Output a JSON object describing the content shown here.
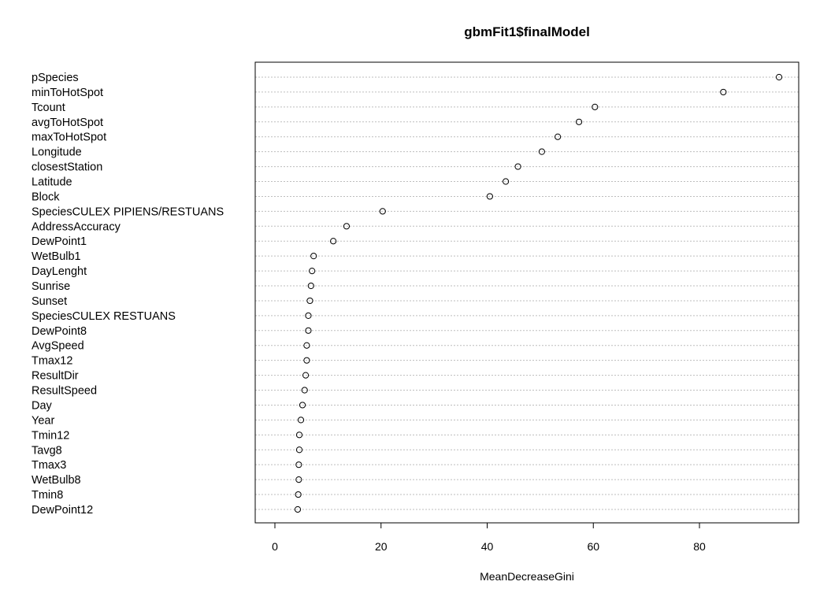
{
  "chart_data": {
    "type": "scatter",
    "title": "gbmFit1$finalModel",
    "xlabel": "MeanDecreaseGini",
    "ylabel": "",
    "xlim": [
      0,
      95
    ],
    "xticks": [
      0,
      20,
      40,
      60,
      80
    ],
    "grid": "horizontal dotted guide line per variable",
    "marker": "open circle",
    "variables": [
      {
        "name": "pSpecies",
        "value": 95.0
      },
      {
        "name": "minToHotSpot",
        "value": 84.5
      },
      {
        "name": "Tcount",
        "value": 60.3
      },
      {
        "name": "avgToHotSpot",
        "value": 57.3
      },
      {
        "name": "maxToHotSpot",
        "value": 53.3
      },
      {
        "name": "Longitude",
        "value": 50.3
      },
      {
        "name": "closestStation",
        "value": 45.8
      },
      {
        "name": "Latitude",
        "value": 43.5
      },
      {
        "name": "Block",
        "value": 40.5
      },
      {
        "name": "SpeciesCULEX PIPIENS/RESTUANS",
        "value": 20.3
      },
      {
        "name": "AddressAccuracy",
        "value": 13.5
      },
      {
        "name": "DewPoint1",
        "value": 11.0
      },
      {
        "name": "WetBulb1",
        "value": 7.3
      },
      {
        "name": "DayLenght",
        "value": 7.0
      },
      {
        "name": "Sunrise",
        "value": 6.8
      },
      {
        "name": "Sunset",
        "value": 6.6
      },
      {
        "name": "SpeciesCULEX RESTUANS",
        "value": 6.3
      },
      {
        "name": "DewPoint8",
        "value": 6.3
      },
      {
        "name": "AvgSpeed",
        "value": 6.0
      },
      {
        "name": "Tmax12",
        "value": 6.0
      },
      {
        "name": "ResultDir",
        "value": 5.8
      },
      {
        "name": "ResultSpeed",
        "value": 5.6
      },
      {
        "name": "Day",
        "value": 5.2
      },
      {
        "name": "Year",
        "value": 4.9
      },
      {
        "name": "Tmin12",
        "value": 4.6
      },
      {
        "name": "Tavg8",
        "value": 4.6
      },
      {
        "name": "Tmax3",
        "value": 4.5
      },
      {
        "name": "WetBulb8",
        "value": 4.5
      },
      {
        "name": "Tmin8",
        "value": 4.4
      },
      {
        "name": "DewPoint12",
        "value": 4.3
      }
    ]
  }
}
